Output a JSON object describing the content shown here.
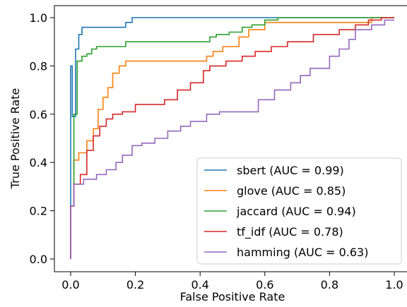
{
  "chart_data": {
    "type": "line",
    "title": "",
    "xlabel": "False Positive Rate",
    "ylabel": "True Positive Rate",
    "xlim": [
      -0.05,
      1.05
    ],
    "ylim": [
      -0.05,
      1.05
    ],
    "xticks": [
      "0.0",
      "0.2",
      "0.4",
      "0.6",
      "0.8",
      "1.0"
    ],
    "yticks": [
      "0.0",
      "0.2",
      "0.4",
      "0.6",
      "0.8",
      "1.0"
    ],
    "grid": false,
    "legend_position": "lower-right",
    "series": [
      {
        "name": "sbert (AUC = 0.99)",
        "color": "#1f77b4",
        "x": [
          0.0,
          0.0,
          0.005,
          0.005,
          0.015,
          0.015,
          0.025,
          0.025,
          0.035,
          0.035,
          0.17,
          0.17,
          0.19,
          0.19,
          0.64,
          0.64,
          1.0
        ],
        "y": [
          0.0,
          0.8,
          0.8,
          0.59,
          0.59,
          0.87,
          0.87,
          0.93,
          0.93,
          0.96,
          0.96,
          0.98,
          0.98,
          1.0,
          1.0,
          1.0,
          1.0
        ]
      },
      {
        "name": "glove (AUC = 0.85)",
        "color": "#ff7f0e",
        "x": [
          0.0,
          0.0,
          0.01,
          0.01,
          0.025,
          0.025,
          0.05,
          0.05,
          0.07,
          0.07,
          0.085,
          0.085,
          0.1,
          0.1,
          0.115,
          0.115,
          0.13,
          0.13,
          0.15,
          0.15,
          0.17,
          0.17,
          0.2,
          0.2,
          0.42,
          0.42,
          0.44,
          0.44,
          0.47,
          0.47,
          0.52,
          0.52,
          0.55,
          0.55,
          0.6,
          0.6,
          0.88,
          0.88,
          0.93,
          0.93,
          1.0
        ],
        "y": [
          0.0,
          0.22,
          0.22,
          0.41,
          0.41,
          0.44,
          0.44,
          0.49,
          0.49,
          0.54,
          0.54,
          0.62,
          0.62,
          0.67,
          0.67,
          0.71,
          0.71,
          0.77,
          0.77,
          0.8,
          0.8,
          0.82,
          0.82,
          0.82,
          0.82,
          0.84,
          0.84,
          0.86,
          0.86,
          0.88,
          0.88,
          0.92,
          0.92,
          0.95,
          0.95,
          0.98,
          0.98,
          0.98,
          0.98,
          1.0,
          1.0
        ]
      },
      {
        "name": "jaccard (AUC = 0.94)",
        "color": "#2ca02c",
        "x": [
          0.0,
          0.0,
          0.01,
          0.01,
          0.02,
          0.02,
          0.035,
          0.035,
          0.05,
          0.05,
          0.065,
          0.065,
          0.08,
          0.08,
          0.17,
          0.17,
          0.43,
          0.43,
          0.45,
          0.45,
          0.49,
          0.49,
          0.53,
          0.53,
          0.56,
          0.56,
          0.6,
          0.6,
          0.64,
          0.64,
          0.9,
          0.9,
          1.0
        ],
        "y": [
          0.0,
          0.22,
          0.22,
          0.6,
          0.6,
          0.82,
          0.82,
          0.84,
          0.84,
          0.85,
          0.85,
          0.87,
          0.87,
          0.88,
          0.88,
          0.9,
          0.9,
          0.92,
          0.92,
          0.93,
          0.93,
          0.94,
          0.94,
          0.96,
          0.96,
          0.97,
          0.97,
          0.99,
          0.99,
          1.0,
          1.0,
          1.0,
          1.0
        ]
      },
      {
        "name": "tf_idf (AUC = 0.78)",
        "color": "#d62728",
        "x": [
          0.0,
          0.0,
          0.01,
          0.01,
          0.03,
          0.03,
          0.05,
          0.05,
          0.07,
          0.07,
          0.09,
          0.09,
          0.11,
          0.11,
          0.13,
          0.13,
          0.16,
          0.16,
          0.2,
          0.2,
          0.29,
          0.29,
          0.33,
          0.33,
          0.37,
          0.37,
          0.41,
          0.41,
          0.43,
          0.43,
          0.48,
          0.48,
          0.53,
          0.53,
          0.57,
          0.57,
          0.62,
          0.62,
          0.67,
          0.67,
          0.75,
          0.75,
          0.83,
          0.83,
          0.88,
          0.88,
          0.92,
          0.92,
          0.96,
          0.96,
          1.0
        ],
        "y": [
          0.0,
          0.22,
          0.22,
          0.31,
          0.31,
          0.35,
          0.35,
          0.45,
          0.45,
          0.51,
          0.51,
          0.55,
          0.55,
          0.58,
          0.58,
          0.6,
          0.6,
          0.61,
          0.61,
          0.64,
          0.64,
          0.66,
          0.66,
          0.7,
          0.7,
          0.73,
          0.73,
          0.78,
          0.78,
          0.8,
          0.8,
          0.82,
          0.82,
          0.84,
          0.84,
          0.86,
          0.86,
          0.88,
          0.88,
          0.9,
          0.9,
          0.93,
          0.93,
          0.95,
          0.95,
          0.97,
          0.97,
          0.99,
          0.99,
          1.0,
          1.0
        ]
      },
      {
        "name": "hamming (AUC = 0.63)",
        "color": "#9467bd",
        "x": [
          0.0,
          0.0,
          0.01,
          0.01,
          0.04,
          0.04,
          0.08,
          0.08,
          0.11,
          0.11,
          0.14,
          0.14,
          0.16,
          0.16,
          0.19,
          0.19,
          0.22,
          0.22,
          0.26,
          0.26,
          0.3,
          0.3,
          0.34,
          0.34,
          0.37,
          0.37,
          0.42,
          0.42,
          0.46,
          0.46,
          0.58,
          0.58,
          0.63,
          0.63,
          0.68,
          0.68,
          0.71,
          0.71,
          0.74,
          0.74,
          0.8,
          0.8,
          0.83,
          0.83,
          0.86,
          0.86,
          0.88,
          0.88,
          0.93,
          0.93,
          0.97,
          0.97,
          1.0
        ],
        "y": [
          0.0,
          0.22,
          0.22,
          0.31,
          0.31,
          0.33,
          0.33,
          0.35,
          0.35,
          0.37,
          0.37,
          0.4,
          0.4,
          0.43,
          0.43,
          0.47,
          0.47,
          0.48,
          0.48,
          0.5,
          0.5,
          0.53,
          0.53,
          0.55,
          0.55,
          0.57,
          0.57,
          0.6,
          0.6,
          0.61,
          0.61,
          0.66,
          0.66,
          0.7,
          0.7,
          0.73,
          0.73,
          0.76,
          0.76,
          0.79,
          0.79,
          0.84,
          0.84,
          0.87,
          0.87,
          0.91,
          0.91,
          0.95,
          0.95,
          0.97,
          0.97,
          0.99,
          0.99
        ]
      }
    ]
  }
}
